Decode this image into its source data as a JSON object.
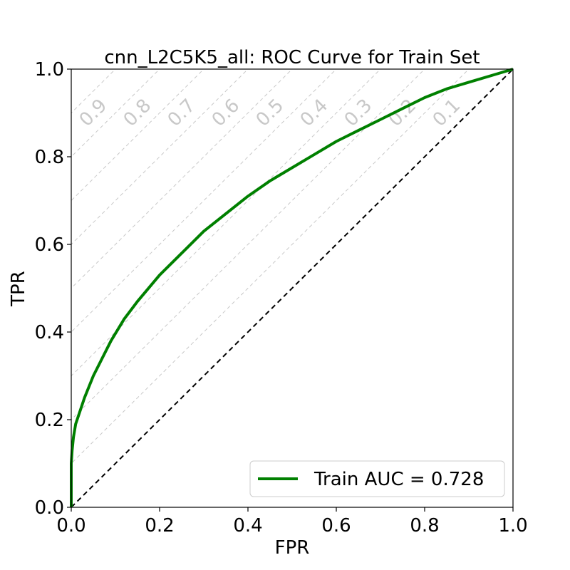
{
  "chart_data": {
    "type": "line",
    "title": "cnn_L2C5K5_all: ROC Curve for Train Set",
    "xlabel": "FPR",
    "ylabel": "TPR",
    "xlim": [
      0.0,
      1.0
    ],
    "ylim": [
      0.0,
      1.0
    ],
    "xticks": [
      "0.0",
      "0.2",
      "0.4",
      "0.6",
      "0.8",
      "1.0"
    ],
    "yticks": [
      "0.0",
      "0.2",
      "0.4",
      "0.6",
      "0.8",
      "1.0"
    ],
    "grid": false,
    "legend_position": "bottom-right",
    "series": [
      {
        "name": "Train AUC = 0.728",
        "color": "#008000",
        "x": [
          0.0,
          0.0,
          0.002,
          0.005,
          0.01,
          0.02,
          0.03,
          0.05,
          0.07,
          0.09,
          0.12,
          0.15,
          0.2,
          0.25,
          0.3,
          0.35,
          0.4,
          0.45,
          0.5,
          0.55,
          0.6,
          0.65,
          0.7,
          0.75,
          0.8,
          0.85,
          0.9,
          0.95,
          1.0
        ],
        "y": [
          0.0,
          0.1,
          0.13,
          0.16,
          0.19,
          0.22,
          0.25,
          0.3,
          0.34,
          0.38,
          0.43,
          0.47,
          0.53,
          0.58,
          0.63,
          0.67,
          0.71,
          0.745,
          0.775,
          0.805,
          0.835,
          0.86,
          0.885,
          0.91,
          0.935,
          0.955,
          0.97,
          0.985,
          1.0
        ]
      }
    ],
    "reference_line": {
      "x": [
        0.0,
        1.0
      ],
      "y": [
        0.0,
        1.0
      ],
      "color": "#000000",
      "style": "dashed"
    },
    "iso_lines": {
      "color": "#c8c8c8",
      "offsets": [
        0.1,
        0.2,
        0.3,
        0.4,
        0.5,
        0.6,
        0.7,
        0.8,
        0.9
      ],
      "labels": [
        "0.1",
        "0.2",
        "0.3",
        "0.4",
        "0.5",
        "0.6",
        "0.7",
        "0.8",
        "0.9"
      ]
    }
  }
}
